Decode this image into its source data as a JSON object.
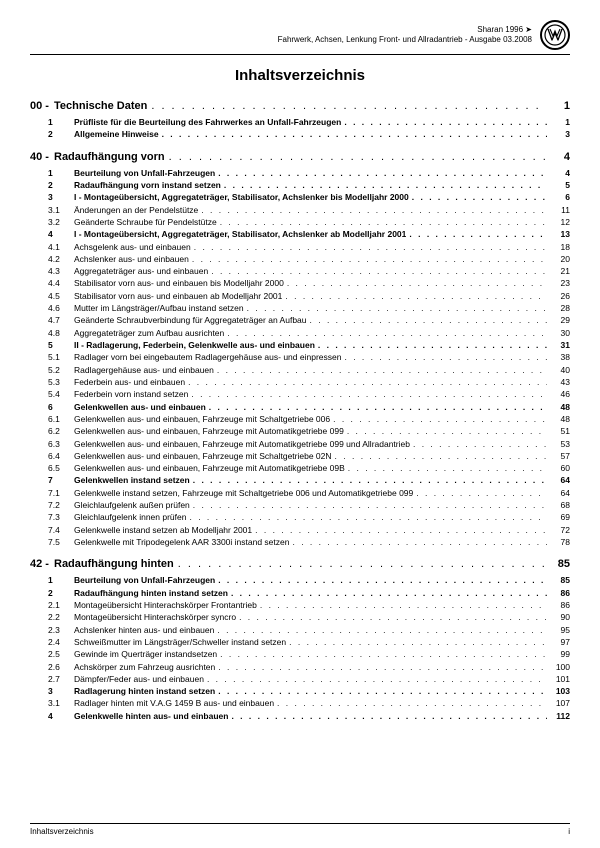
{
  "header": {
    "model": "Sharan 1996 ➤",
    "doc": "Fahrwerk, Achsen, Lenkung Front- und Allradantrieb - Ausgabe 03.2008"
  },
  "title": "Inhaltsverzeichnis",
  "footer": {
    "left": "Inhaltsverzeichnis",
    "right": "i"
  },
  "sections": [
    {
      "num": "00 -",
      "label": "Technische Daten",
      "page": "1",
      "rows": [
        {
          "num": "1",
          "label": "Prüfliste für die Beurteilung des Fahrwerkes an Unfall-Fahrzeugen",
          "page": "1",
          "bold": true
        },
        {
          "num": "2",
          "label": "Allgemeine Hinweise",
          "page": "3",
          "bold": true
        }
      ]
    },
    {
      "num": "40 -",
      "label": "Radaufhängung vorn",
      "page": "4",
      "rows": [
        {
          "num": "1",
          "label": "Beurteilung von Unfall-Fahrzeugen",
          "page": "4",
          "bold": true
        },
        {
          "num": "2",
          "label": "Radaufhängung vorn instand setzen",
          "page": "5",
          "bold": true
        },
        {
          "num": "3",
          "label": "I - Montageübersicht, Aggregateträger, Stabilisator, Achslenker bis Modelljahr 2000",
          "page": "6",
          "bold": true
        },
        {
          "num": "3.1",
          "label": "Änderungen an der Pendelstütze",
          "page": "11",
          "bold": false
        },
        {
          "num": "3.2",
          "label": "Geänderte Schraube für Pendelstütze",
          "page": "12",
          "bold": false
        },
        {
          "num": "4",
          "label": "I - Montageübersicht, Aggregateträger, Stabilisator, Achslenker ab Modelljahr 2001",
          "page": "13",
          "bold": true
        },
        {
          "num": "4.1",
          "label": "Achsgelenk aus- und einbauen",
          "page": "18",
          "bold": false
        },
        {
          "num": "4.2",
          "label": "Achslenker aus- und einbauen",
          "page": "20",
          "bold": false
        },
        {
          "num": "4.3",
          "label": "Aggregateträger aus- und einbauen",
          "page": "21",
          "bold": false
        },
        {
          "num": "4.4",
          "label": "Stabilisator vorn aus- und einbauen bis Modelljahr 2000",
          "page": "23",
          "bold": false
        },
        {
          "num": "4.5",
          "label": "Stabilisator vorn aus- und einbauen ab Modelljahr 2001",
          "page": "26",
          "bold": false
        },
        {
          "num": "4.6",
          "label": "Mutter im Längsträger/Aufbau instand setzen",
          "page": "28",
          "bold": false
        },
        {
          "num": "4.7",
          "label": "Geänderte Schraubverbindung für Aggregateträger an Aufbau",
          "page": "29",
          "bold": false
        },
        {
          "num": "4.8",
          "label": "Aggregateträger zum Aufbau ausrichten",
          "page": "30",
          "bold": false
        },
        {
          "num": "5",
          "label": "II - Radlagerung, Federbein, Gelenkwelle aus- und einbauen",
          "page": "31",
          "bold": true
        },
        {
          "num": "5.1",
          "label": "Radlager vorn bei eingebautem Radlagergehäuse aus- und einpressen",
          "page": "38",
          "bold": false
        },
        {
          "num": "5.2",
          "label": "Radlagergehäuse aus- und einbauen",
          "page": "40",
          "bold": false
        },
        {
          "num": "5.3",
          "label": "Federbein aus- und einbauen",
          "page": "43",
          "bold": false
        },
        {
          "num": "5.4",
          "label": "Federbein vorn instand setzen",
          "page": "46",
          "bold": false
        },
        {
          "num": "6",
          "label": "Gelenkwellen aus- und einbauen",
          "page": "48",
          "bold": true
        },
        {
          "num": "6.1",
          "label": "Gelenkwellen aus- und einbauen, Fahrzeuge mit Schaltgetriebe 006",
          "page": "48",
          "bold": false
        },
        {
          "num": "6.2",
          "label": "Gelenkwellen aus- und einbauen, Fahrzeuge mit Automatikgetriebe 099",
          "page": "51",
          "bold": false
        },
        {
          "num": "6.3",
          "label": "Gelenkwellen aus- und einbauen, Fahrzeuge mit Automatikgetriebe 099 und Allradantrieb",
          "page": "53",
          "bold": false
        },
        {
          "num": "6.4",
          "label": "Gelenkwellen aus- und einbauen, Fahrzeuge mit Schaltgetriebe 02N",
          "page": "57",
          "bold": false
        },
        {
          "num": "6.5",
          "label": "Gelenkwellen aus- und einbauen, Fahrzeuge mit Automatikgetriebe 09B",
          "page": "60",
          "bold": false
        },
        {
          "num": "7",
          "label": "Gelenkwellen instand setzen",
          "page": "64",
          "bold": true
        },
        {
          "num": "7.1",
          "label": "Gelenkwelle instand setzen, Fahrzeuge mit Schaltgetriebe 006 und Automatikgetriebe 099",
          "page": "64",
          "bold": false
        },
        {
          "num": "7.2",
          "label": "Gleichlaufgelenk außen prüfen",
          "page": "68",
          "bold": false
        },
        {
          "num": "7.3",
          "label": "Gleichlaufgelenk innen prüfen",
          "page": "69",
          "bold": false
        },
        {
          "num": "7.4",
          "label": "Gelenkwelle instand setzen ab Modelljahr 2001",
          "page": "72",
          "bold": false
        },
        {
          "num": "7.5",
          "label": "Gelenkwelle mit Tripodegelenk AAR 3300i instand setzen",
          "page": "78",
          "bold": false
        }
      ]
    },
    {
      "num": "42 -",
      "label": "Radaufhängung hinten",
      "page": "85",
      "rows": [
        {
          "num": "1",
          "label": "Beurteilung von Unfall-Fahrzeugen",
          "page": "85",
          "bold": true
        },
        {
          "num": "2",
          "label": "Radaufhängung hinten instand setzen",
          "page": "86",
          "bold": true
        },
        {
          "num": "2.1",
          "label": "Montageübersicht Hinterachskörper Frontantrieb",
          "page": "86",
          "bold": false
        },
        {
          "num": "2.2",
          "label": "Montageübersicht Hinterachskörper syncro",
          "page": "90",
          "bold": false
        },
        {
          "num": "2.3",
          "label": "Achslenker hinten aus- und einbauen",
          "page": "95",
          "bold": false
        },
        {
          "num": "2.4",
          "label": "Schweißmutter im Längsträger/Schweller instand setzen",
          "page": "97",
          "bold": false
        },
        {
          "num": "2.5",
          "label": "Gewinde im Querträger instandsetzen",
          "page": "99",
          "bold": false
        },
        {
          "num": "2.6",
          "label": "Achskörper zum Fahrzeug ausrichten",
          "page": "100",
          "bold": false
        },
        {
          "num": "2.7",
          "label": "Dämpfer/Feder aus- und einbauen",
          "page": "101",
          "bold": false
        },
        {
          "num": "3",
          "label": "Radlagerung hinten instand setzen",
          "page": "103",
          "bold": true
        },
        {
          "num": "3.1",
          "label": "Radlager hinten mit V.A.G 1459 B aus- und einbauen",
          "page": "107",
          "bold": false
        },
        {
          "num": "4",
          "label": "Gelenkwelle hinten aus- und einbauen",
          "page": "112",
          "bold": true
        }
      ]
    }
  ]
}
